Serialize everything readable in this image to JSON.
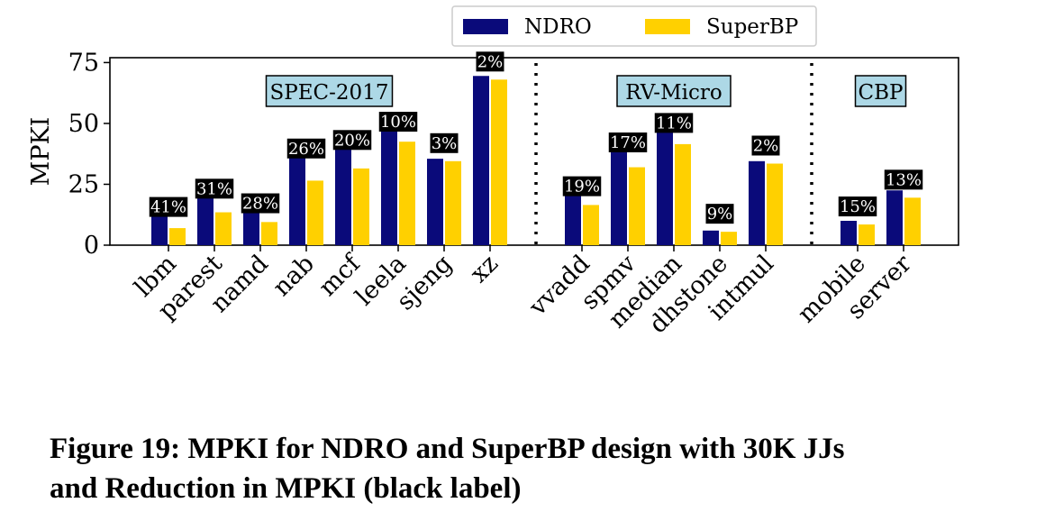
{
  "chart_data": {
    "type": "bar",
    "ylabel": "MPKI",
    "ylim": [
      0,
      77
    ],
    "yticks": [
      0,
      25,
      50,
      75
    ],
    "legend": {
      "placement": "top-center"
    },
    "series": [
      {
        "name": "NDRO",
        "color": "#0a0a7a"
      },
      {
        "name": "SuperBP",
        "color": "#ffd000"
      }
    ],
    "groups": [
      {
        "label": "SPEC-2017",
        "categories": [
          {
            "name": "lbm",
            "NDRO": 12,
            "SuperBP": 7,
            "reduction": "41%"
          },
          {
            "name": "parest",
            "NDRO": 19.5,
            "SuperBP": 13.5,
            "reduction": "31%"
          },
          {
            "name": "namd",
            "NDRO": 13.5,
            "SuperBP": 9.5,
            "reduction": "28%"
          },
          {
            "name": "nab",
            "NDRO": 36,
            "SuperBP": 26.5,
            "reduction": "26%"
          },
          {
            "name": "mcf",
            "NDRO": 39.5,
            "SuperBP": 31.5,
            "reduction": "20%"
          },
          {
            "name": "leela",
            "NDRO": 47,
            "SuperBP": 42.5,
            "reduction": "10%"
          },
          {
            "name": "sjeng",
            "NDRO": 35.5,
            "SuperBP": 34.5,
            "reduction": "3%"
          },
          {
            "name": "xz",
            "NDRO": 69.5,
            "SuperBP": 68,
            "reduction": "2%"
          }
        ]
      },
      {
        "label": "RV-Micro",
        "categories": [
          {
            "name": "vvadd",
            "NDRO": 20.5,
            "SuperBP": 16.5,
            "reduction": "19%"
          },
          {
            "name": "spmv",
            "NDRO": 38.5,
            "SuperBP": 32,
            "reduction": "17%"
          },
          {
            "name": "median",
            "NDRO": 46.5,
            "SuperBP": 41.5,
            "reduction": "11%"
          },
          {
            "name": "dhstone",
            "NDRO": 6,
            "SuperBP": 5.5,
            "reduction": "9%"
          },
          {
            "name": "intmul",
            "NDRO": 34.5,
            "SuperBP": 33.5,
            "reduction": "2%"
          }
        ]
      },
      {
        "label": "CBP",
        "categories": [
          {
            "name": "mobile",
            "NDRO": 10,
            "SuperBP": 8.5,
            "reduction": "15%"
          },
          {
            "name": "server",
            "NDRO": 22.5,
            "SuperBP": 19.5,
            "reduction": "13%"
          }
        ]
      }
    ]
  },
  "caption": {
    "line1": "Figure 19: MPKI for NDRO and SuperBP design with 30K JJs",
    "line2": "and Reduction in MPKI (black label)"
  }
}
